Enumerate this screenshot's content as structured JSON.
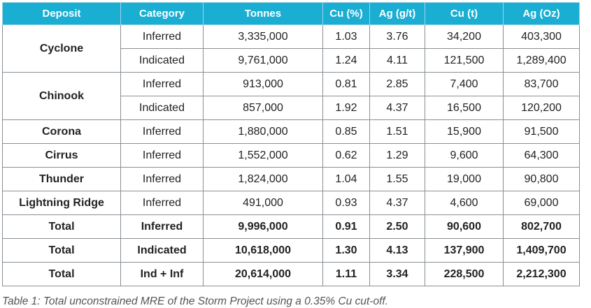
{
  "headers": [
    "Deposit",
    "Category",
    "Tonnes",
    "Cu (%)",
    "Ag (g/t)",
    "Cu (t)",
    "Ag (Oz)"
  ],
  "rows": [
    {
      "deposit": "Cyclone",
      "category": "Inferred",
      "tonnes": "3,335,000",
      "cu_pct": "1.03",
      "ag_gt": "3.76",
      "cu_t": "34,200",
      "ag_oz": "403,300"
    },
    {
      "category": "Indicated",
      "tonnes": "9,761,000",
      "cu_pct": "1.24",
      "ag_gt": "4.11",
      "cu_t": "121,500",
      "ag_oz": "1,289,400"
    },
    {
      "deposit": "Chinook",
      "category": "Inferred",
      "tonnes": "913,000",
      "cu_pct": "0.81",
      "ag_gt": "2.85",
      "cu_t": "7,400",
      "ag_oz": "83,700"
    },
    {
      "category": "Indicated",
      "tonnes": "857,000",
      "cu_pct": "1.92",
      "ag_gt": "4.37",
      "cu_t": "16,500",
      "ag_oz": "120,200"
    },
    {
      "deposit": "Corona",
      "category": "Inferred",
      "tonnes": "1,880,000",
      "cu_pct": "0.85",
      "ag_gt": "1.51",
      "cu_t": "15,900",
      "ag_oz": "91,500"
    },
    {
      "deposit": "Cirrus",
      "category": "Inferred",
      "tonnes": "1,552,000",
      "cu_pct": "0.62",
      "ag_gt": "1.29",
      "cu_t": "9,600",
      "ag_oz": "64,300"
    },
    {
      "deposit": "Thunder",
      "category": "Inferred",
      "tonnes": "1,824,000",
      "cu_pct": "1.04",
      "ag_gt": "1.55",
      "cu_t": "19,000",
      "ag_oz": "90,800"
    },
    {
      "deposit": "Lightning Ridge",
      "category": "Inferred",
      "tonnes": "491,000",
      "cu_pct": "0.93",
      "ag_gt": "4.37",
      "cu_t": "4,600",
      "ag_oz": "69,000"
    },
    {
      "deposit": "Total",
      "category": "Inferred",
      "tonnes": "9,996,000",
      "cu_pct": "0.91",
      "ag_gt": "2.50",
      "cu_t": "90,600",
      "ag_oz": "802,700"
    },
    {
      "deposit": "Total",
      "category": "Indicated",
      "tonnes": "10,618,000",
      "cu_pct": "1.30",
      "ag_gt": "4.13",
      "cu_t": "137,900",
      "ag_oz": "1,409,700"
    },
    {
      "deposit": "Total",
      "category": "Ind + Inf",
      "tonnes": "20,614,000",
      "cu_pct": "1.11",
      "ag_gt": "3.34",
      "cu_t": "228,500",
      "ag_oz": "2,212,300"
    }
  ],
  "caption": "Table 1: Total unconstrained MRE of the Storm Project using a 0.35% Cu cut-off.",
  "colors": {
    "header_bg": "#1aaed3",
    "header_text": "#ffffff",
    "border": "#8a8f93"
  }
}
